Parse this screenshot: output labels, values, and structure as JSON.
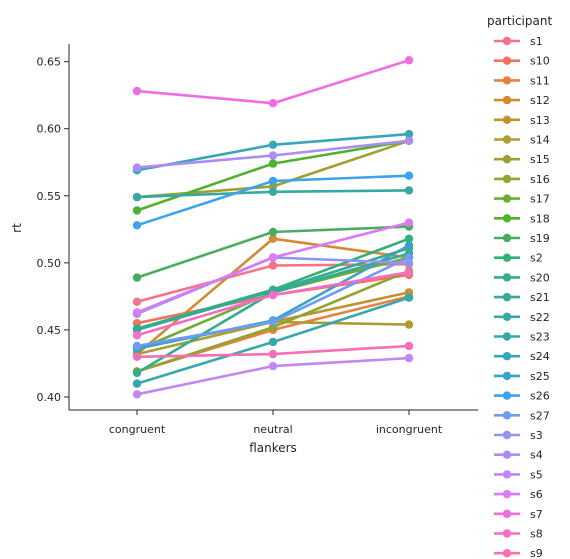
{
  "chart_data": {
    "type": "line",
    "xlabel": "flankers",
    "ylabel": "rt",
    "categories": [
      "congruent",
      "neutral",
      "incongruent"
    ],
    "ylim": [
      0.39,
      0.663
    ],
    "yticks": [
      0.4,
      0.45,
      0.5,
      0.55,
      0.6,
      0.65
    ],
    "ytick_labels": [
      "0.40",
      "0.45",
      "0.50",
      "0.55",
      "0.60",
      "0.65"
    ],
    "grid": false,
    "legend_title": "participant",
    "legend_position": "right",
    "series": [
      {
        "name": "s1",
        "color": "#f77189",
        "values": [
          0.471,
          0.498,
          0.499
        ]
      },
      {
        "name": "s10",
        "color": "#f4725f",
        "values": [
          0.455,
          0.476,
          0.491
        ]
      },
      {
        "name": "s11",
        "color": "#e9803d",
        "values": [
          0.419,
          0.45,
          0.475
        ]
      },
      {
        "name": "s12",
        "color": "#d38a32",
        "values": [
          0.432,
          0.518,
          0.504
        ]
      },
      {
        "name": "s13",
        "color": "#c29232",
        "values": [
          0.437,
          0.456,
          0.478
        ]
      },
      {
        "name": "s14",
        "color": "#b09a32",
        "values": [
          0.432,
          0.456,
          0.454
        ]
      },
      {
        "name": "s15",
        "color": "#a0a031",
        "values": [
          0.549,
          0.557,
          0.591
        ]
      },
      {
        "name": "s16",
        "color": "#8ea531",
        "values": [
          0.419,
          0.452,
          0.494
        ]
      },
      {
        "name": "s17",
        "color": "#6fac31",
        "values": [
          0.435,
          0.478,
          0.504
        ]
      },
      {
        "name": "s18",
        "color": "#50b131",
        "values": [
          0.539,
          0.574,
          0.591
        ]
      },
      {
        "name": "s19",
        "color": "#4aac62",
        "values": [
          0.489,
          0.523,
          0.527
        ]
      },
      {
        "name": "s2",
        "color": "#33b07a",
        "values": [
          0.451,
          0.48,
          0.518
        ]
      },
      {
        "name": "s20",
        "color": "#34ad8c",
        "values": [
          0.418,
          0.478,
          0.507
        ]
      },
      {
        "name": "s21",
        "color": "#35aa98",
        "values": [
          0.45,
          0.479,
          0.511
        ]
      },
      {
        "name": "s22",
        "color": "#36a9a4",
        "values": [
          0.549,
          0.553,
          0.554
        ]
      },
      {
        "name": "s23",
        "color": "#37a7af",
        "values": [
          0.41,
          0.441,
          0.474
        ]
      },
      {
        "name": "s24",
        "color": "#38a5b8",
        "values": [
          0.569,
          0.588,
          0.596
        ]
      },
      {
        "name": "s25",
        "color": "#3aa2c3",
        "values": [
          0.436,
          0.457,
          0.513
        ]
      },
      {
        "name": "s26",
        "color": "#3ba3ec",
        "values": [
          0.528,
          0.561,
          0.565
        ]
      },
      {
        "name": "s27",
        "color": "#6e9bf4",
        "values": [
          0.438,
          0.456,
          0.504
        ]
      },
      {
        "name": "s3",
        "color": "#8e96f4",
        "values": [
          0.462,
          0.504,
          0.5
        ]
      },
      {
        "name": "s4",
        "color": "#ad8cf4",
        "values": [
          0.571,
          0.58,
          0.591
        ]
      },
      {
        "name": "s5",
        "color": "#c387f4",
        "values": [
          0.402,
          0.423,
          0.429
        ]
      },
      {
        "name": "s6",
        "color": "#d97bf2",
        "values": [
          0.463,
          0.504,
          0.53
        ]
      },
      {
        "name": "s7",
        "color": "#f06ce0",
        "values": [
          0.628,
          0.619,
          0.651
        ]
      },
      {
        "name": "s8",
        "color": "#f46ec8",
        "values": [
          0.446,
          0.476,
          0.493
        ]
      },
      {
        "name": "s9",
        "color": "#f56fb3",
        "values": [
          0.43,
          0.432,
          0.438
        ]
      }
    ]
  }
}
